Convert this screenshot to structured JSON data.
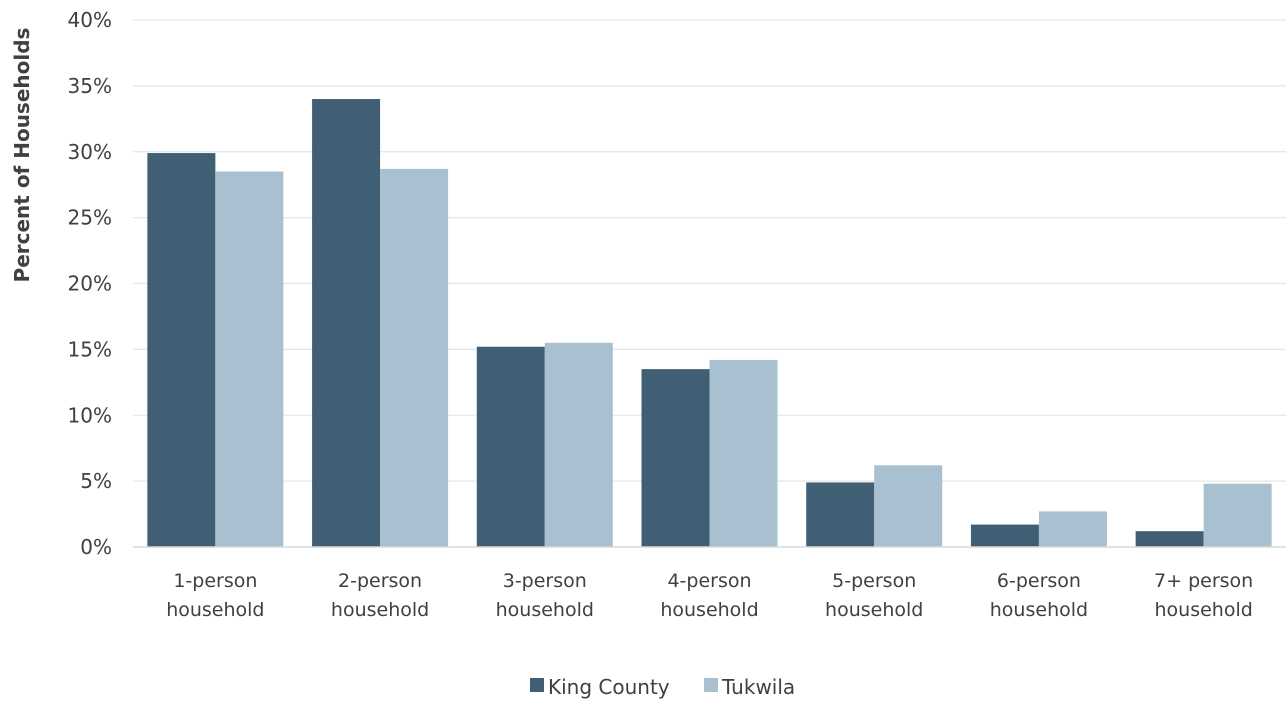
{
  "chart_data": {
    "type": "bar",
    "ylabel": "Percent of Households",
    "xlabel": "",
    "ylim": [
      0,
      40
    ],
    "yticks": [
      "0%",
      "5%",
      "10%",
      "15%",
      "20%",
      "25%",
      "30%",
      "35%",
      "40%"
    ],
    "categories": [
      [
        "1-person",
        "household"
      ],
      [
        "2-person",
        "household"
      ],
      [
        "3-person",
        "household"
      ],
      [
        "4-person",
        "household"
      ],
      [
        "5-person",
        "household"
      ],
      [
        "6-person",
        "household"
      ],
      [
        "7+ person",
        "household"
      ]
    ],
    "series": [
      {
        "name": "King County",
        "color": "#405f74",
        "values": [
          29.9,
          34.0,
          15.2,
          13.5,
          4.9,
          1.7,
          1.2
        ]
      },
      {
        "name": "Tukwila",
        "color": "#a9c0d1",
        "values": [
          28.5,
          28.7,
          15.5,
          14.2,
          6.2,
          2.7,
          4.8
        ]
      }
    ],
    "grid": true,
    "legend": "bottom-center"
  }
}
